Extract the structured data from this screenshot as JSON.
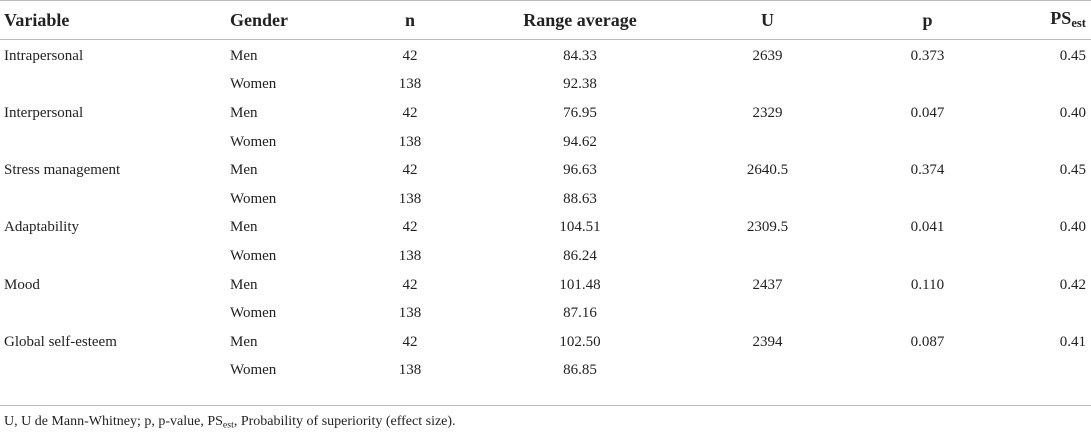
{
  "headers": {
    "variable": "Variable",
    "gender": "Gender",
    "n": "n",
    "range_average": "Range average",
    "u": "U",
    "p": "p",
    "ps_main": "PS",
    "ps_sub": "est"
  },
  "rows": [
    {
      "variable": "Intrapersonal",
      "gender": "Men",
      "n": "42",
      "range": "84.33",
      "u": "2639",
      "p": "0.373",
      "ps": "0.45"
    },
    {
      "variable": "",
      "gender": "Women",
      "n": "138",
      "range": "92.38",
      "u": "",
      "p": "",
      "ps": ""
    },
    {
      "variable": "Interpersonal",
      "gender": "Men",
      "n": "42",
      "range": "76.95",
      "u": "2329",
      "p": "0.047",
      "ps": "0.40"
    },
    {
      "variable": "",
      "gender": "Women",
      "n": "138",
      "range": "94.62",
      "u": "",
      "p": "",
      "ps": ""
    },
    {
      "variable": "Stress management",
      "gender": "Men",
      "n": "42",
      "range": "96.63",
      "u": "2640.5",
      "p": "0.374",
      "ps": "0.45"
    },
    {
      "variable": "",
      "gender": "Women",
      "n": "138",
      "range": "88.63",
      "u": "",
      "p": "",
      "ps": ""
    },
    {
      "variable": "Adaptability",
      "gender": "Men",
      "n": "42",
      "range": "104.51",
      "u": "2309.5",
      "p": "0.041",
      "ps": "0.40"
    },
    {
      "variable": "",
      "gender": "Women",
      "n": "138",
      "range": "86.24",
      "u": "",
      "p": "",
      "ps": ""
    },
    {
      "variable": "Mood",
      "gender": "Men",
      "n": "42",
      "range": "101.48",
      "u": "2437",
      "p": "0.110",
      "ps": "0.42"
    },
    {
      "variable": "",
      "gender": "Women",
      "n": "138",
      "range": "87.16",
      "u": "",
      "p": "",
      "ps": ""
    },
    {
      "variable": "Global self-esteem",
      "gender": "Men",
      "n": "42",
      "range": "102.50",
      "u": "2394",
      "p": "0.087",
      "ps": "0.41"
    },
    {
      "variable": "",
      "gender": "Women",
      "n": "138",
      "range": "86.85",
      "u": "",
      "p": "",
      "ps": ""
    }
  ],
  "footnote": {
    "part1": "U, U de Mann-Whitney; p, p-value, PS",
    "sub": "est",
    "part2": ", Probability of superiority (effect size)."
  }
}
